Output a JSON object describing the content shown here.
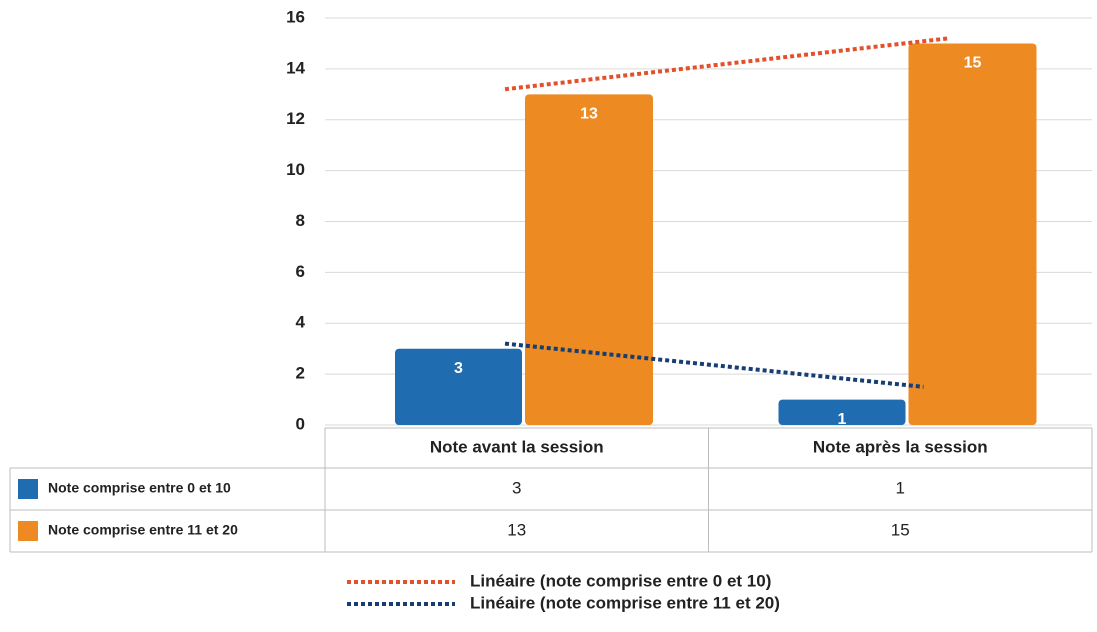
{
  "chart_data": {
    "type": "bar",
    "categories": [
      "Note avant la session",
      "Note après la session"
    ],
    "series": [
      {
        "name": "Note comprise entre 0 et 10",
        "color": "#1f6cb0",
        "values": [
          3,
          1
        ]
      },
      {
        "name": "Note comprise entre 11 et 20",
        "color": "#ee8a22",
        "values": [
          13,
          15
        ]
      }
    ],
    "trendlines": [
      {
        "name": "Linéaire (note comprise entre 0 et 10)",
        "color": "#e2502c",
        "values": [
          13.2,
          15.2
        ]
      },
      {
        "name": "Linéaire (note comprise entre 11 et 20)",
        "color": "#163e72",
        "values": [
          3.2,
          1.5
        ]
      }
    ],
    "ylim": [
      0,
      16
    ],
    "yticks": [
      0,
      2,
      4,
      6,
      8,
      10,
      12,
      14,
      16
    ],
    "grid": true
  }
}
